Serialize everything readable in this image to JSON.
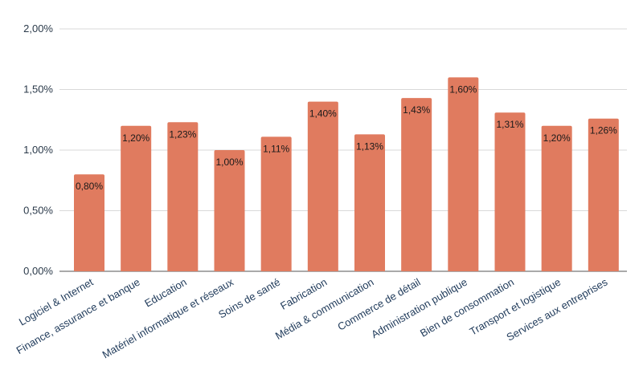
{
  "chart_data": {
    "type": "bar",
    "title": "",
    "xlabel": "",
    "ylabel": "",
    "categories": [
      "Logiciel & Internet",
      "Finance, assurance et banque",
      "Education",
      "Matériel informatique et réseaux",
      "Soins de santé",
      "Fabrication",
      "Média & communication",
      "Commerce de détail",
      "Administration publique",
      "Bien de consommation",
      "Transport et logistique",
      "Services aux entreprises"
    ],
    "values": [
      0.8,
      1.2,
      1.23,
      1.0,
      1.11,
      1.4,
      1.13,
      1.43,
      1.6,
      1.31,
      1.2,
      1.26
    ],
    "value_labels": [
      "0,80%",
      "1,20%",
      "1,23%",
      "1,00%",
      "1,11%",
      "1,40%",
      "1,13%",
      "1,43%",
      "1,60%",
      "1,31%",
      "1,20%",
      "1,26%"
    ],
    "ylim": [
      0,
      2.0
    ],
    "yticks": [
      0,
      0.5,
      1.0,
      1.5,
      2.0
    ],
    "ytick_labels": [
      "0,00%",
      "0,50%",
      "1,00%",
      "1,50%",
      "2,00%"
    ],
    "grid": true,
    "legend": "none",
    "bar_color": "#E07B5F"
  }
}
